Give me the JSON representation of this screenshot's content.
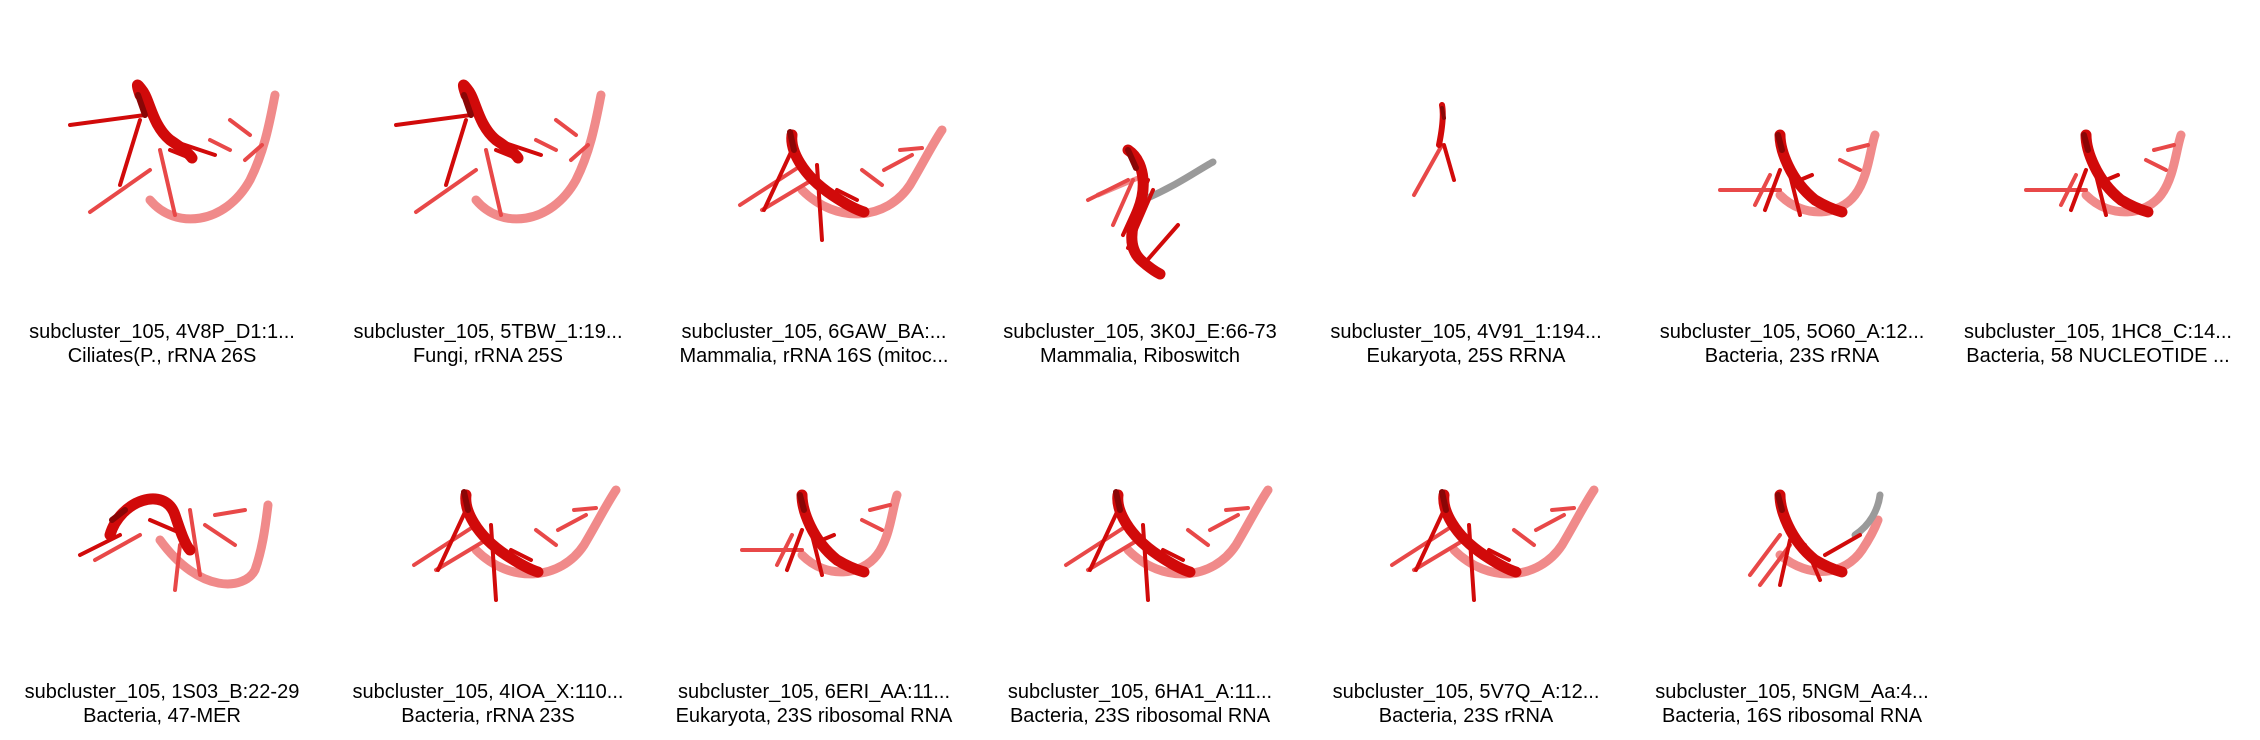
{
  "tiles": [
    {
      "title": "subcluster_105, 4V8P_D1:1...",
      "subtitle": "Ciliates(P., rRNA 26S",
      "variant": "large"
    },
    {
      "title": "subcluster_105, 5TBW_1:19...",
      "subtitle": "Fungi, rRNA 25S",
      "variant": "large"
    },
    {
      "title": "subcluster_105, 6GAW_BA:...",
      "subtitle": "Mammalia, rRNA 16S (mitoc...",
      "variant": "medium"
    },
    {
      "title": "subcluster_105, 3K0J_E:66-73",
      "subtitle": "Mammalia, Riboswitch",
      "variant": "riboswitch"
    },
    {
      "title": "subcluster_105, 4V91_1:194...",
      "subtitle": "Eukaryota, 25S RRNA",
      "variant": "tiny"
    },
    {
      "title": "subcluster_105, 5O60_A:12...",
      "subtitle": "Bacteria, 23S rRNA",
      "variant": "small"
    },
    {
      "title": "subcluster_105, 1HC8_C:14...",
      "subtitle": "Bacteria, 58 NUCLEOTIDE ...",
      "variant": "small"
    },
    {
      "title": "subcluster_105, 1S03_B:22-29",
      "subtitle": "Bacteria, 47-MER",
      "variant": "loop"
    },
    {
      "title": "subcluster_105, 4IOA_X:110...",
      "subtitle": "Bacteria, rRNA 23S",
      "variant": "medium"
    },
    {
      "title": "subcluster_105, 6ERI_AA:11...",
      "subtitle": "Eukaryota, 23S ribosomal RNA",
      "variant": "small"
    },
    {
      "title": "subcluster_105, 6HA1_A:11...",
      "subtitle": "Bacteria, 23S ribosomal RNA",
      "variant": "medium"
    },
    {
      "title": "subcluster_105, 5V7Q_A:12...",
      "subtitle": "Bacteria, 23S rRNA",
      "variant": "medium"
    },
    {
      "title": "subcluster_105, 5NGM_Aa:4...",
      "subtitle": "Bacteria, 16S ribosomal RNA",
      "variant": "graytip"
    }
  ]
}
